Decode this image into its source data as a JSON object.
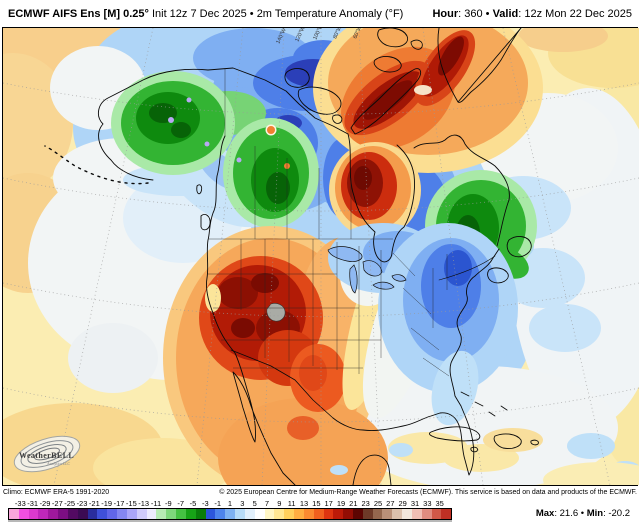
{
  "header": {
    "model_bold": "ECMWF AIFS Ens [M] 0.25°",
    "model_rest": " Init 12z 7 Dec 2025 • 2m Temperature Anomaly (°F)",
    "hour_label": "Hour",
    "hour_value": ": 360 • ",
    "valid_label": "Valid",
    "valid_value": ": 12z Mon 22 Dec 2025"
  },
  "map": {
    "lon_labels": [
      "140°W",
      "120°W",
      "100°W",
      "80°W",
      "60°W"
    ],
    "watermark": {
      "brand": "WeatherBELL",
      "tagline": "Analytics LLC"
    },
    "anomaly_regions": [
      "Warm anomaly (+9 to +21°F) over Great Basin / Rockies with max core in Utah-Colorado",
      "Warm anomaly over Greenland, Ellesmere and Baffin Island; dark-red core over Hudson Bay",
      "Cold anomaly (green, -9 to -17°F) over Alaska, British Columbia/Alberta and Quebec/Labrador",
      "Cold anomaly (blue) across Canadian Arctic, Hudson Bay shores and eastern US seaboard",
      "Near-neutral white over Gulf of Alaska, central US transition band and western Atlantic",
      "Mild positive anomaly (pale yellow/orange) over subtropical Pacific and far North Atlantic"
    ]
  },
  "footer": {
    "climo": "Climo: ECMWF ERA-5 1991-2020",
    "copyright": "© 2025 European Centre for Medium-Range Weather Forecasts (ECMWF). This service is based on data and products of the ECMWF.",
    "max_label": "Max",
    "max_value": ": 21.6 • ",
    "min_label": "Min",
    "min_value": ": -20.2"
  },
  "colorbar": {
    "unit": "°F",
    "tick_labels": [
      "-33",
      "-31",
      "-29",
      "-27",
      "-25",
      "-23",
      "-21",
      "-19",
      "-17",
      "-15",
      "-13",
      "-11",
      "-9",
      "-7",
      "-5",
      "-3",
      "-1",
      "1",
      "3",
      "5",
      "7",
      "9",
      "11",
      "13",
      "15",
      "17",
      "19",
      "21",
      "23",
      "25",
      "27",
      "29",
      "31",
      "33",
      "35"
    ],
    "colors": [
      "#F9A6DB",
      "#F24FE1",
      "#DC39CE",
      "#BF27BA",
      "#9F189D",
      "#7C0E83",
      "#530A62",
      "#3B0B53",
      "#2A2D9E",
      "#3F50DA",
      "#6166E9",
      "#8486F1",
      "#AAA5F8",
      "#D0CBFB",
      "#EDEBFE",
      "#B6EBB4",
      "#7ED87C",
      "#45C243",
      "#17A317",
      "#0A7E0B",
      "#2C56DC",
      "#4E84EC",
      "#7FB2F2",
      "#B8DCF8",
      "#E2F0FC",
      "#FFFFFF",
      "#FFF6C5",
      "#FFE793",
      "#FFD05C",
      "#FFAE41",
      "#FB8A30",
      "#F1601E",
      "#DE3410",
      "#BC1A08",
      "#930D04",
      "#5C0502",
      "#6E3A28",
      "#94674E",
      "#BA9078",
      "#DCC0AC",
      "#F2E6DC",
      "#F0BEB4",
      "#E08C80",
      "#D05848",
      "#C03024"
    ]
  }
}
